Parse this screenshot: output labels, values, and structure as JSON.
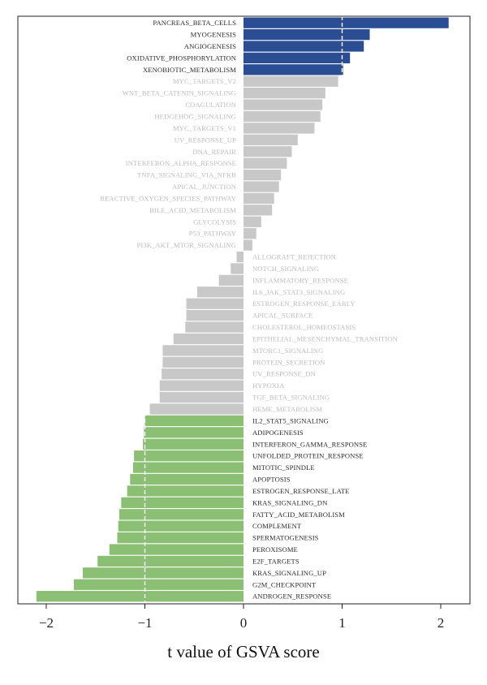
{
  "chart_data": {
    "type": "bar",
    "orientation": "horizontal",
    "xlabel": "t value of GSVA score",
    "xlim": [
      -2.3,
      2.3
    ],
    "xticks": [
      -2,
      -1,
      0,
      1,
      2
    ],
    "xtick_labels": [
      "−2",
      "−1",
      "0",
      "1",
      "2"
    ],
    "threshold_lines": [
      -1,
      1
    ],
    "colors": {
      "up": "#2a4d94",
      "neutral": "#c8c8c8",
      "down": "#8bbf73",
      "label_dark": "#2b2b2b",
      "label_gray": "#bdbdbd"
    },
    "categories": [
      "PANCREAS_BETA_CELLS",
      "MYOGENESIS",
      "ANGIOGENESIS",
      "OXIDATIVE_PHOSPHORYLATION",
      "XENOBIOTIC_METABOLISM",
      "MYC_TARGETS_V2",
      "WNT_BETA_CATENIN_SIGNALING",
      "COAGULATION",
      "HEDGEHOG_SIGNALING",
      "MYC_TARGETS_V1",
      "UV_RESPONSE_UP",
      "DNA_REPAIR",
      "INTERFERON_ALPHA_RESPONSE",
      "TNFA_SIGNALING_VIA_NFKB",
      "APICAL_JUNCTION",
      "REACTIVE_OXYGEN_SPECIES_PATHWAY",
      "BILE_ACID_METABOLISM",
      "GLYCOLYSIS",
      "P53_PATHWAY",
      "PI3K_AKT_MTOR_SIGNALING",
      "ALLOGRAFT_REJECTION",
      "NOTCH_SIGNALING",
      "INFLAMMATORY_RESPONSE",
      "IL6_JAK_STAT3_SIGNALING",
      "ESTROGEN_RESPONSE_EARLY",
      "APICAL_SURFACE",
      "CHOLESTEROL_HOMEOSTASIS",
      "EPITHELIAL_MESENCHYMAL_TRANSITION",
      "MTORC1_SIGNALING",
      "PROTEIN_SECRETION",
      "UV_RESPONSE_DN",
      "HYPOXIA",
      "TGF_BETA_SIGNALING",
      "HEME_METABOLISM",
      "IL2_STAT5_SIGNALING",
      "ADIPOGENESIS",
      "INTERFERON_GAMMA_RESPONSE",
      "UNFOLDED_PROTEIN_RESPONSE",
      "MITOTIC_SPINDLE",
      "APOPTOSIS",
      "ESTROGEN_RESPONSE_LATE",
      "KRAS_SIGNALING_DN",
      "FATTY_ACID_METABOLISM",
      "COMPLEMENT",
      "SPERMATOGENESIS",
      "PEROXISOME",
      "E2F_TARGETS",
      "KRAS_SIGNALING_UP",
      "G2M_CHECKPOINT",
      "ANDROGEN_RESPONSE"
    ],
    "values": [
      2.08,
      1.28,
      1.22,
      1.08,
      1.01,
      0.96,
      0.83,
      0.8,
      0.78,
      0.72,
      0.55,
      0.49,
      0.44,
      0.38,
      0.36,
      0.31,
      0.29,
      0.18,
      0.13,
      0.09,
      -0.07,
      -0.13,
      -0.25,
      -0.47,
      -0.58,
      -0.58,
      -0.59,
      -0.71,
      -0.82,
      -0.82,
      -0.83,
      -0.85,
      -0.85,
      -0.95,
      -1.0,
      -1.01,
      -1.02,
      -1.11,
      -1.12,
      -1.15,
      -1.18,
      -1.24,
      -1.26,
      -1.27,
      -1.28,
      -1.36,
      -1.48,
      -1.63,
      -1.72,
      -2.1
    ],
    "groups": [
      "up",
      "up",
      "up",
      "up",
      "up",
      "neutral",
      "neutral",
      "neutral",
      "neutral",
      "neutral",
      "neutral",
      "neutral",
      "neutral",
      "neutral",
      "neutral",
      "neutral",
      "neutral",
      "neutral",
      "neutral",
      "neutral",
      "neutral",
      "neutral",
      "neutral",
      "neutral",
      "neutral",
      "neutral",
      "neutral",
      "neutral",
      "neutral",
      "neutral",
      "neutral",
      "neutral",
      "neutral",
      "neutral",
      "down",
      "down",
      "down",
      "down",
      "down",
      "down",
      "down",
      "down",
      "down",
      "down",
      "down",
      "down",
      "down",
      "down",
      "down",
      "down"
    ]
  }
}
